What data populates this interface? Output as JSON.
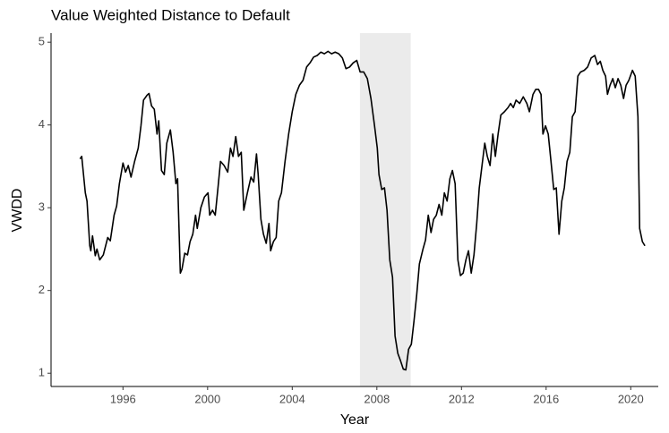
{
  "chart_data": {
    "type": "line",
    "title": "Value Weighted Distance to Default",
    "xlabel": "Year",
    "ylabel": "VWDD",
    "color": "#000000",
    "x": [
      1993.97,
      1994.05,
      1994.22,
      1994.3,
      1994.43,
      1994.48,
      1994.56,
      1994.69,
      1994.77,
      1994.9,
      1995.07,
      1995.28,
      1995.4,
      1995.58,
      1995.7,
      1995.83,
      1996.0,
      1996.12,
      1996.25,
      1996.38,
      1996.55,
      1996.72,
      1996.85,
      1996.97,
      1997.14,
      1997.23,
      1997.35,
      1997.48,
      1997.61,
      1997.69,
      1997.82,
      1997.95,
      1998.07,
      1998.24,
      1998.37,
      1998.5,
      1998.58,
      1998.71,
      1998.79,
      1998.92,
      1999.05,
      1999.17,
      1999.3,
      1999.43,
      1999.51,
      1999.68,
      1999.85,
      2000.02,
      2000.1,
      2000.23,
      2000.36,
      2000.49,
      2000.61,
      2000.78,
      2000.95,
      2001.08,
      2001.2,
      2001.33,
      2001.46,
      2001.59,
      2001.71,
      2001.88,
      2002.05,
      2002.18,
      2002.31,
      2002.39,
      2002.52,
      2002.64,
      2002.77,
      2002.9,
      2002.98,
      2003.11,
      2003.24,
      2003.36,
      2003.49,
      2003.66,
      2003.83,
      2004.0,
      2004.17,
      2004.34,
      2004.51,
      2004.68,
      2004.84,
      2005.01,
      2005.18,
      2005.35,
      2005.52,
      2005.69,
      2005.86,
      2006.03,
      2006.2,
      2006.37,
      2006.54,
      2006.71,
      2006.88,
      2007.05,
      2007.21,
      2007.38,
      2007.55,
      2007.72,
      2007.89,
      2008.02,
      2008.1,
      2008.23,
      2008.36,
      2008.48,
      2008.61,
      2008.74,
      2008.86,
      2008.99,
      2009.12,
      2009.25,
      2009.37,
      2009.5,
      2009.63,
      2009.75,
      2009.88,
      2010.01,
      2010.18,
      2010.3,
      2010.43,
      2010.56,
      2010.68,
      2010.81,
      2010.94,
      2011.07,
      2011.19,
      2011.32,
      2011.45,
      2011.57,
      2011.7,
      2011.83,
      2011.95,
      2012.08,
      2012.21,
      2012.33,
      2012.46,
      2012.59,
      2012.72,
      2012.84,
      2012.97,
      2013.1,
      2013.22,
      2013.35,
      2013.48,
      2013.6,
      2013.73,
      2013.86,
      2014.03,
      2014.2,
      2014.32,
      2014.45,
      2014.58,
      2014.75,
      2014.92,
      2015.09,
      2015.21,
      2015.38,
      2015.51,
      2015.64,
      2015.76,
      2015.85,
      2015.97,
      2016.1,
      2016.23,
      2016.36,
      2016.48,
      2016.61,
      2016.74,
      2016.86,
      2016.99,
      2017.12,
      2017.24,
      2017.37,
      2017.5,
      2017.63,
      2017.8,
      2017.96,
      2018.13,
      2018.3,
      2018.43,
      2018.56,
      2018.68,
      2018.81,
      2018.9,
      2019.02,
      2019.15,
      2019.27,
      2019.4,
      2019.53,
      2019.66,
      2019.78,
      2019.91,
      2020.08,
      2020.21,
      2020.34,
      2020.42,
      2020.55,
      2020.67
    ],
    "values": [
      3.59,
      3.62,
      3.18,
      3.08,
      2.54,
      2.48,
      2.66,
      2.42,
      2.5,
      2.37,
      2.43,
      2.64,
      2.6,
      2.91,
      3.02,
      3.29,
      3.54,
      3.43,
      3.51,
      3.37,
      3.56,
      3.72,
      3.99,
      4.3,
      4.36,
      4.38,
      4.23,
      4.19,
      3.89,
      4.05,
      3.45,
      3.4,
      3.78,
      3.94,
      3.67,
      3.29,
      3.35,
      2.21,
      2.26,
      2.45,
      2.43,
      2.59,
      2.68,
      2.91,
      2.75,
      3.0,
      3.13,
      3.18,
      2.91,
      2.97,
      2.91,
      3.24,
      3.56,
      3.51,
      3.43,
      3.72,
      3.62,
      3.86,
      3.62,
      3.67,
      2.97,
      3.18,
      3.37,
      3.31,
      3.65,
      3.4,
      2.86,
      2.68,
      2.57,
      2.81,
      2.48,
      2.59,
      2.64,
      3.08,
      3.18,
      3.56,
      3.89,
      4.16,
      4.37,
      4.48,
      4.54,
      4.7,
      4.75,
      4.82,
      4.84,
      4.88,
      4.86,
      4.89,
      4.86,
      4.88,
      4.86,
      4.81,
      4.68,
      4.7,
      4.75,
      4.78,
      4.64,
      4.64,
      4.56,
      4.32,
      3.99,
      3.72,
      3.4,
      3.22,
      3.24,
      2.97,
      2.37,
      2.16,
      1.45,
      1.24,
      1.15,
      1.05,
      1.04,
      1.29,
      1.35,
      1.62,
      1.94,
      2.32,
      2.5,
      2.61,
      2.91,
      2.7,
      2.86,
      2.91,
      3.04,
      2.91,
      3.18,
      3.08,
      3.35,
      3.45,
      3.29,
      2.37,
      2.18,
      2.21,
      2.37,
      2.48,
      2.21,
      2.43,
      2.81,
      3.24,
      3.51,
      3.78,
      3.62,
      3.51,
      3.89,
      3.62,
      3.89,
      4.12,
      4.16,
      4.21,
      4.26,
      4.21,
      4.3,
      4.26,
      4.34,
      4.26,
      4.16,
      4.37,
      4.43,
      4.43,
      4.37,
      3.89,
      3.99,
      3.89,
      3.56,
      3.22,
      3.24,
      2.68,
      3.08,
      3.24,
      3.56,
      3.67,
      4.1,
      4.16,
      4.59,
      4.64,
      4.66,
      4.7,
      4.81,
      4.84,
      4.73,
      4.77,
      4.66,
      4.59,
      4.37,
      4.48,
      4.56,
      4.45,
      4.56,
      4.48,
      4.32,
      4.48,
      4.54,
      4.66,
      4.59,
      4.1,
      2.75,
      2.59,
      2.54
    ],
    "shade": {
      "x": [
        2007.2,
        2009.6
      ],
      "color": "#ebebeb"
    },
    "xlim": [
      1992.6,
      2021.3
    ],
    "xticks": [
      1996,
      2000,
      2004,
      2008,
      2012,
      2016,
      2020
    ],
    "ylim": [
      0.84,
      5.11
    ],
    "yticks": [
      1,
      2,
      3,
      4,
      5
    ],
    "grid": false
  }
}
